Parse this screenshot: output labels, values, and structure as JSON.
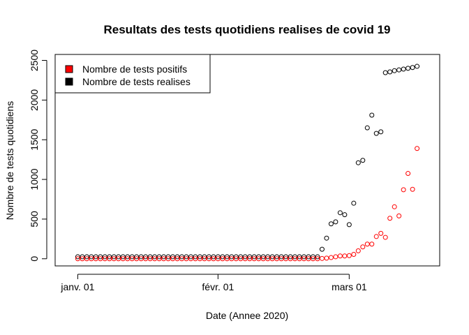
{
  "chart_data": {
    "type": "scatter",
    "title": "Resultats des tests quotidiens realises de covid 19",
    "xlabel": "Date (Annee 2020)",
    "ylabel": "Nombre de tests quotidiens",
    "x_ticks": [
      {
        "date": "2020-01-01",
        "label": "janv. 01"
      },
      {
        "date": "2020-02-01",
        "label": "févr. 01"
      },
      {
        "date": "2020-03-01",
        "label": "mars 01"
      }
    ],
    "y_ticks": [
      0,
      500,
      1000,
      1500,
      2000,
      2500
    ],
    "xlim": [
      "2019-12-27",
      "2020-03-21"
    ],
    "ylim": [
      -90,
      2575
    ],
    "legend": {
      "position": "top-left",
      "entries": [
        {
          "label": "Nombre de tests positifs",
          "color": "#ff0000"
        },
        {
          "label": "Nombre de tests realises",
          "color": "#000000"
        }
      ]
    },
    "series": [
      {
        "name": "Nombre de tests positifs",
        "color": "#ff0000",
        "points": [
          [
            "2020-01-01",
            0
          ],
          [
            "2020-01-02",
            0
          ],
          [
            "2020-01-03",
            0
          ],
          [
            "2020-01-04",
            0
          ],
          [
            "2020-01-05",
            0
          ],
          [
            "2020-01-06",
            0
          ],
          [
            "2020-01-07",
            0
          ],
          [
            "2020-01-08",
            0
          ],
          [
            "2020-01-09",
            0
          ],
          [
            "2020-01-10",
            0
          ],
          [
            "2020-01-11",
            0
          ],
          [
            "2020-01-12",
            0
          ],
          [
            "2020-01-13",
            0
          ],
          [
            "2020-01-14",
            0
          ],
          [
            "2020-01-15",
            0
          ],
          [
            "2020-01-16",
            0
          ],
          [
            "2020-01-17",
            0
          ],
          [
            "2020-01-18",
            0
          ],
          [
            "2020-01-19",
            0
          ],
          [
            "2020-01-20",
            0
          ],
          [
            "2020-01-21",
            0
          ],
          [
            "2020-01-22",
            0
          ],
          [
            "2020-01-23",
            0
          ],
          [
            "2020-01-24",
            0
          ],
          [
            "2020-01-25",
            0
          ],
          [
            "2020-01-26",
            0
          ],
          [
            "2020-01-27",
            0
          ],
          [
            "2020-01-28",
            0
          ],
          [
            "2020-01-29",
            0
          ],
          [
            "2020-01-30",
            0
          ],
          [
            "2020-01-31",
            0
          ],
          [
            "2020-02-01",
            0
          ],
          [
            "2020-02-02",
            0
          ],
          [
            "2020-02-03",
            0
          ],
          [
            "2020-02-04",
            0
          ],
          [
            "2020-02-05",
            0
          ],
          [
            "2020-02-06",
            0
          ],
          [
            "2020-02-07",
            0
          ],
          [
            "2020-02-08",
            0
          ],
          [
            "2020-02-09",
            0
          ],
          [
            "2020-02-10",
            0
          ],
          [
            "2020-02-11",
            0
          ],
          [
            "2020-02-12",
            0
          ],
          [
            "2020-02-13",
            0
          ],
          [
            "2020-02-14",
            0
          ],
          [
            "2020-02-15",
            0
          ],
          [
            "2020-02-16",
            0
          ],
          [
            "2020-02-17",
            0
          ],
          [
            "2020-02-18",
            0
          ],
          [
            "2020-02-19",
            0
          ],
          [
            "2020-02-20",
            0
          ],
          [
            "2020-02-21",
            0
          ],
          [
            "2020-02-22",
            0
          ],
          [
            "2020-02-23",
            0
          ],
          [
            "2020-02-24",
            4
          ],
          [
            "2020-02-25",
            8
          ],
          [
            "2020-02-26",
            15
          ],
          [
            "2020-02-27",
            25
          ],
          [
            "2020-02-28",
            35
          ],
          [
            "2020-02-29",
            35
          ],
          [
            "2020-03-01",
            40
          ],
          [
            "2020-03-02",
            55
          ],
          [
            "2020-03-03",
            100
          ],
          [
            "2020-03-04",
            150
          ],
          [
            "2020-03-05",
            185
          ],
          [
            "2020-03-06",
            185
          ],
          [
            "2020-03-07",
            280
          ],
          [
            "2020-03-08",
            320
          ],
          [
            "2020-03-09",
            270
          ],
          [
            "2020-03-10",
            510
          ],
          [
            "2020-03-11",
            655
          ],
          [
            "2020-03-12",
            540
          ],
          [
            "2020-03-13",
            870
          ],
          [
            "2020-03-14",
            1075
          ],
          [
            "2020-03-15",
            875
          ],
          [
            "2020-03-16",
            1390
          ]
        ]
      },
      {
        "name": "Nombre de tests realises",
        "color": "#000000",
        "points": [
          [
            "2020-01-01",
            25
          ],
          [
            "2020-01-02",
            25
          ],
          [
            "2020-01-03",
            25
          ],
          [
            "2020-01-04",
            25
          ],
          [
            "2020-01-05",
            25
          ],
          [
            "2020-01-06",
            25
          ],
          [
            "2020-01-07",
            25
          ],
          [
            "2020-01-08",
            25
          ],
          [
            "2020-01-09",
            25
          ],
          [
            "2020-01-10",
            25
          ],
          [
            "2020-01-11",
            25
          ],
          [
            "2020-01-12",
            25
          ],
          [
            "2020-01-13",
            25
          ],
          [
            "2020-01-14",
            25
          ],
          [
            "2020-01-15",
            25
          ],
          [
            "2020-01-16",
            25
          ],
          [
            "2020-01-17",
            25
          ],
          [
            "2020-01-18",
            25
          ],
          [
            "2020-01-19",
            25
          ],
          [
            "2020-01-20",
            25
          ],
          [
            "2020-01-21",
            25
          ],
          [
            "2020-01-22",
            25
          ],
          [
            "2020-01-23",
            25
          ],
          [
            "2020-01-24",
            25
          ],
          [
            "2020-01-25",
            25
          ],
          [
            "2020-01-26",
            25
          ],
          [
            "2020-01-27",
            25
          ],
          [
            "2020-01-28",
            25
          ],
          [
            "2020-01-29",
            25
          ],
          [
            "2020-01-30",
            25
          ],
          [
            "2020-01-31",
            25
          ],
          [
            "2020-02-01",
            25
          ],
          [
            "2020-02-02",
            25
          ],
          [
            "2020-02-03",
            25
          ],
          [
            "2020-02-04",
            25
          ],
          [
            "2020-02-05",
            25
          ],
          [
            "2020-02-06",
            25
          ],
          [
            "2020-02-07",
            25
          ],
          [
            "2020-02-08",
            25
          ],
          [
            "2020-02-09",
            25
          ],
          [
            "2020-02-10",
            25
          ],
          [
            "2020-02-11",
            25
          ],
          [
            "2020-02-12",
            25
          ],
          [
            "2020-02-13",
            25
          ],
          [
            "2020-02-14",
            25
          ],
          [
            "2020-02-15",
            25
          ],
          [
            "2020-02-16",
            25
          ],
          [
            "2020-02-17",
            25
          ],
          [
            "2020-02-18",
            25
          ],
          [
            "2020-02-19",
            25
          ],
          [
            "2020-02-20",
            25
          ],
          [
            "2020-02-21",
            25
          ],
          [
            "2020-02-22",
            25
          ],
          [
            "2020-02-23",
            25
          ],
          [
            "2020-02-24",
            120
          ],
          [
            "2020-02-25",
            260
          ],
          [
            "2020-02-26",
            440
          ],
          [
            "2020-02-27",
            465
          ],
          [
            "2020-02-28",
            580
          ],
          [
            "2020-02-29",
            555
          ],
          [
            "2020-03-01",
            430
          ],
          [
            "2020-03-02",
            700
          ],
          [
            "2020-03-03",
            1210
          ],
          [
            "2020-03-04",
            1240
          ],
          [
            "2020-03-05",
            1650
          ],
          [
            "2020-03-06",
            1810
          ],
          [
            "2020-03-07",
            1580
          ],
          [
            "2020-03-08",
            1600
          ],
          [
            "2020-03-09",
            2345
          ],
          [
            "2020-03-10",
            2355
          ],
          [
            "2020-03-11",
            2370
          ],
          [
            "2020-03-12",
            2380
          ],
          [
            "2020-03-13",
            2390
          ],
          [
            "2020-03-14",
            2400
          ],
          [
            "2020-03-15",
            2410
          ],
          [
            "2020-03-16",
            2425
          ]
        ]
      }
    ]
  }
}
